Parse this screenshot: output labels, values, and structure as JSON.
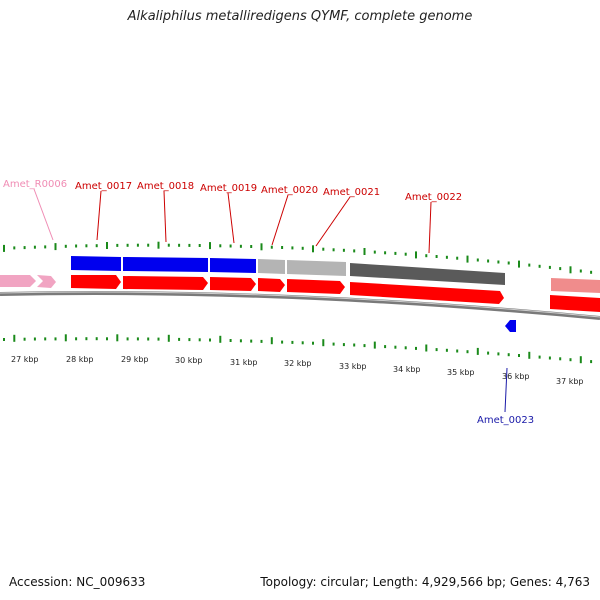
{
  "title": "Alkaliphilus metalliredigens QYMF, complete genome",
  "footer": {
    "accession_label": "Accession:",
    "accession": "NC_009633",
    "topology_text": "Topology: circular; Length: 4,929,566 bp; Genes: 4,763"
  },
  "colors": {
    "backbone": "#7a7a7a",
    "ticks": "#1a8a1a",
    "forward_blue": "#0000ee",
    "grey_light": "#b4b4b4",
    "grey_dark": "#5a5a5a",
    "pink": "#f1a4c2",
    "red": "#ff0000",
    "label_red": "#cc0000",
    "label_blue": "#1a1aa8",
    "label_pink": "#f08cb4"
  },
  "kbp_ticks": [
    "27 kbp",
    "28 kbp",
    "29 kbp",
    "30 kbp",
    "31 kbp",
    "32 kbp",
    "33 kbp",
    "34 kbp",
    "35 kbp",
    "36 kbp",
    "37 kbp"
  ],
  "labels": [
    {
      "text": "Amet_R0006",
      "color": "pink"
    },
    {
      "text": "Amet_0017",
      "color": "red"
    },
    {
      "text": "Amet_0018",
      "color": "red"
    },
    {
      "text": "Amet_0019",
      "color": "red"
    },
    {
      "text": "Amet_0020",
      "color": "red"
    },
    {
      "text": "Amet_0021",
      "color": "red"
    },
    {
      "text": "Amet_0022",
      "color": "red"
    },
    {
      "text": "Amet_0023",
      "color": "blue"
    }
  ]
}
